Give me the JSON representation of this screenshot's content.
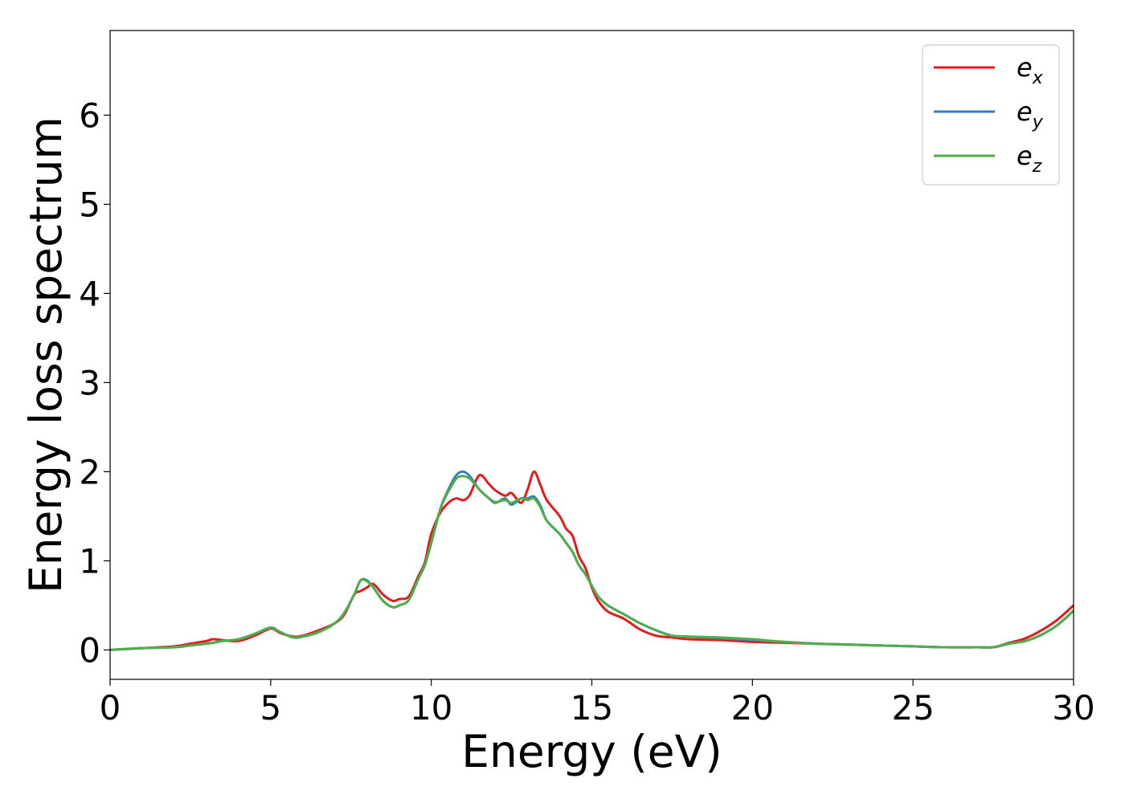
{
  "chart_data": {
    "type": "line",
    "title": "",
    "xlabel": "Energy (eV)",
    "ylabel": "Energy loss spectrum",
    "xlim": [
      0,
      30
    ],
    "ylim": [
      -0.33,
      6.95
    ],
    "xticks": [
      "0",
      "5",
      "10",
      "15",
      "20",
      "25",
      "30"
    ],
    "yticks": [
      "0",
      "1",
      "2",
      "3",
      "4",
      "5",
      "6"
    ],
    "grid": false,
    "legend_placement": "top-right",
    "x": [
      0,
      1,
      2,
      2.5,
      3,
      3.2,
      3.5,
      4,
      4.5,
      5,
      5.3,
      5.7,
      6,
      6.5,
      7,
      7.3,
      7.6,
      7.8,
      8,
      8.2,
      8.5,
      8.8,
      9,
      9.3,
      9.6,
      9.8,
      10,
      10.3,
      10.6,
      10.8,
      11,
      11.2,
      11.5,
      11.8,
      12,
      12.3,
      12.5,
      12.8,
      13,
      13.2,
      13.4,
      13.6,
      14,
      14.2,
      14.4,
      14.6,
      14.8,
      15,
      15.2,
      15.5,
      16,
      16.5,
      17,
      17.5,
      18,
      19,
      20,
      21,
      22,
      23,
      24,
      25,
      26,
      27,
      27.5,
      28,
      28.5,
      29,
      29.5,
      30
    ],
    "series": [
      {
        "name": "e_x",
        "label_base": "e",
        "label_sub": "x",
        "color": "#e41a1c",
        "values": [
          0,
          0.02,
          0.04,
          0.07,
          0.1,
          0.12,
          0.11,
          0.1,
          0.16,
          0.24,
          0.19,
          0.15,
          0.16,
          0.22,
          0.3,
          0.4,
          0.62,
          0.66,
          0.7,
          0.74,
          0.62,
          0.55,
          0.57,
          0.6,
          0.83,
          0.98,
          1.3,
          1.55,
          1.67,
          1.7,
          1.68,
          1.74,
          1.96,
          1.86,
          1.79,
          1.73,
          1.76,
          1.65,
          1.8,
          2.0,
          1.85,
          1.68,
          1.5,
          1.36,
          1.28,
          1.05,
          0.92,
          0.7,
          0.55,
          0.43,
          0.35,
          0.23,
          0.16,
          0.14,
          0.12,
          0.11,
          0.09,
          0.08,
          0.07,
          0.06,
          0.05,
          0.04,
          0.03,
          0.03,
          0.03,
          0.08,
          0.13,
          0.22,
          0.34,
          0.5
        ]
      },
      {
        "name": "e_y",
        "label_base": "e",
        "label_sub": "y",
        "color": "#377eb8",
        "values": [
          0,
          0.02,
          0.03,
          0.05,
          0.07,
          0.08,
          0.1,
          0.12,
          0.18,
          0.25,
          0.2,
          0.14,
          0.15,
          0.2,
          0.3,
          0.42,
          0.62,
          0.78,
          0.78,
          0.7,
          0.55,
          0.48,
          0.5,
          0.56,
          0.8,
          0.95,
          1.2,
          1.6,
          1.85,
          1.97,
          2.0,
          1.95,
          1.8,
          1.7,
          1.65,
          1.7,
          1.63,
          1.7,
          1.7,
          1.72,
          1.62,
          1.45,
          1.3,
          1.2,
          1.1,
          0.95,
          0.85,
          0.72,
          0.6,
          0.5,
          0.4,
          0.3,
          0.22,
          0.16,
          0.15,
          0.13,
          0.11,
          0.09,
          0.07,
          0.06,
          0.05,
          0.04,
          0.03,
          0.03,
          0.03,
          0.07,
          0.1,
          0.17,
          0.28,
          0.44
        ]
      },
      {
        "name": "e_z",
        "label_base": "e",
        "label_sub": "z",
        "color": "#4daf4a",
        "values": [
          0,
          0.02,
          0.03,
          0.05,
          0.07,
          0.08,
          0.1,
          0.12,
          0.18,
          0.25,
          0.2,
          0.14,
          0.15,
          0.2,
          0.3,
          0.42,
          0.62,
          0.78,
          0.77,
          0.7,
          0.55,
          0.48,
          0.5,
          0.56,
          0.8,
          0.95,
          1.2,
          1.6,
          1.82,
          1.93,
          1.95,
          1.92,
          1.8,
          1.7,
          1.66,
          1.68,
          1.65,
          1.7,
          1.68,
          1.7,
          1.6,
          1.45,
          1.3,
          1.2,
          1.1,
          0.95,
          0.85,
          0.72,
          0.6,
          0.5,
          0.4,
          0.3,
          0.22,
          0.16,
          0.15,
          0.14,
          0.12,
          0.09,
          0.07,
          0.06,
          0.05,
          0.04,
          0.03,
          0.03,
          0.03,
          0.07,
          0.1,
          0.17,
          0.28,
          0.44
        ]
      }
    ]
  }
}
